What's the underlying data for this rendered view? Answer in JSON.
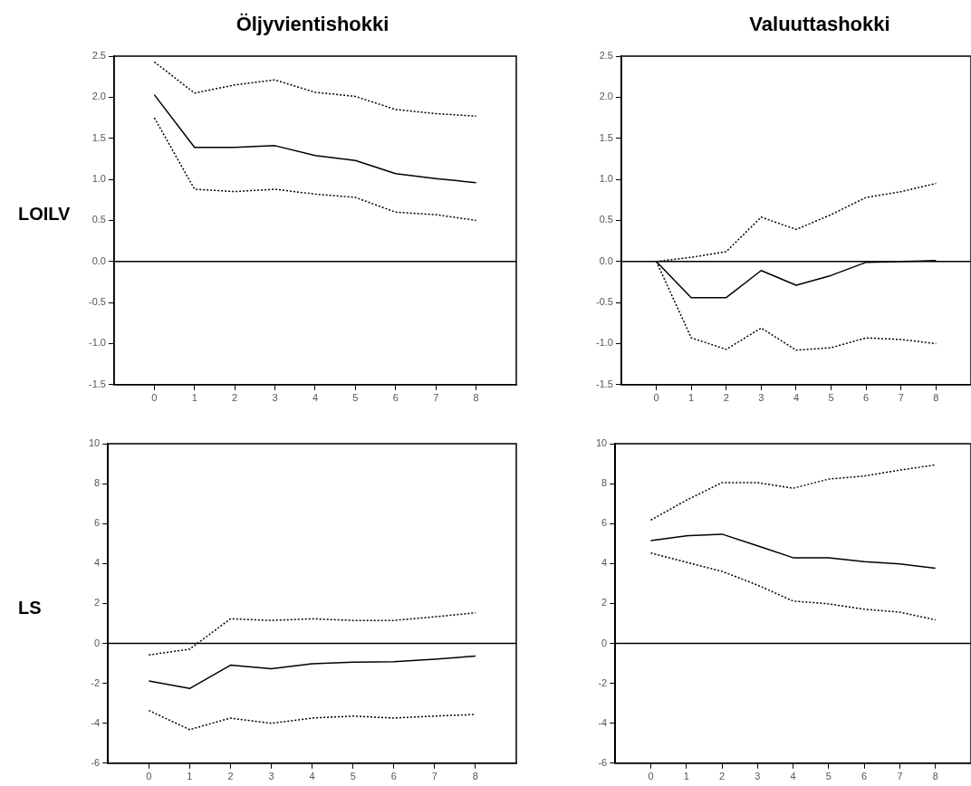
{
  "chart_data": [
    {
      "type": "line",
      "title": "Öljyvientishokki",
      "ylabel": "LOILV",
      "x": [
        0,
        1,
        2,
        3,
        4,
        5,
        6,
        7,
        8
      ],
      "xlim": [
        -1,
        9
      ],
      "xticks": [
        0,
        1,
        2,
        3,
        4,
        5,
        6,
        7,
        8
      ],
      "ylim": [
        -1.5,
        2.5
      ],
      "yticks": [
        -1.5,
        {
          "value": -1,
          "label": "-1.0"
        },
        -0.5,
        {
          "value": 0,
          "label": "0.0"
        },
        0.5,
        {
          "value": 1,
          "label": "1.0"
        },
        1.5,
        {
          "value": 2,
          "label": "2.0"
        },
        2.5
      ],
      "grid": false,
      "legend": false,
      "marker": "none",
      "ref_lines": [
        {
          "axis": "y",
          "value": 0,
          "color": "#000000",
          "line_style": "solid"
        }
      ],
      "series": [
        {
          "color": "#000000",
          "line_style": "solid",
          "values": [
            2.03,
            1.39,
            1.39,
            1.41,
            1.29,
            1.23,
            1.07,
            1.01,
            0.96
          ]
        },
        {
          "color": "#000000",
          "line_style": "dotted",
          "values": [
            2.43,
            2.05,
            2.15,
            2.21,
            2.06,
            2.01,
            1.85,
            1.8,
            1.77
          ]
        },
        {
          "color": "#000000",
          "line_style": "dotted",
          "values": [
            1.75,
            0.88,
            0.85,
            0.88,
            0.82,
            0.78,
            0.6,
            0.57,
            0.5
          ]
        }
      ]
    },
    {
      "type": "line",
      "title": "Valuuttashokki",
      "x": [
        0,
        1,
        2,
        3,
        4,
        5,
        6,
        7,
        8
      ],
      "xlim": [
        -1,
        9
      ],
      "xticks": [
        0,
        1,
        2,
        3,
        4,
        5,
        6,
        7,
        8
      ],
      "ylim": [
        -1.5,
        2.5
      ],
      "yticks": [
        -1.5,
        {
          "value": -1,
          "label": "-1.0"
        },
        -0.5,
        {
          "value": 0,
          "label": "0.0"
        },
        0.5,
        {
          "value": 1,
          "label": "1.0"
        },
        1.5,
        {
          "value": 2,
          "label": "2.0"
        },
        2.5
      ],
      "grid": false,
      "legend": false,
      "marker": "none",
      "ref_lines": [
        {
          "axis": "y",
          "value": 0,
          "color": "#000000",
          "line_style": "solid"
        }
      ],
      "series": [
        {
          "color": "#000000",
          "line_style": "solid",
          "values": [
            0,
            -0.44,
            -0.44,
            -0.11,
            -0.29,
            -0.17,
            -0.01,
            0.0,
            0.01
          ]
        },
        {
          "color": "#000000",
          "line_style": "dotted",
          "values": [
            0,
            0.05,
            0.12,
            0.54,
            0.39,
            0.57,
            0.78,
            0.85,
            0.95
          ]
        },
        {
          "color": "#000000",
          "line_style": "dotted",
          "values": [
            0,
            -0.93,
            -1.07,
            -0.81,
            -1.08,
            -1.05,
            -0.93,
            -0.95,
            -1.0
          ]
        }
      ]
    },
    {
      "type": "line",
      "ylabel": "LS",
      "x": [
        0,
        1,
        2,
        3,
        4,
        5,
        6,
        7,
        8
      ],
      "xlim": [
        -1,
        9
      ],
      "xticks": [
        0,
        1,
        2,
        3,
        4,
        5,
        6,
        7,
        8
      ],
      "ylim": [
        -6,
        10
      ],
      "yticks": [
        -6,
        -4,
        -2,
        0,
        2,
        4,
        6,
        8,
        10
      ],
      "grid": false,
      "legend": false,
      "marker": "none",
      "ref_lines": [
        {
          "axis": "y",
          "value": 0,
          "color": "#000000",
          "line_style": "solid"
        }
      ],
      "series": [
        {
          "color": "#000000",
          "line_style": "solid",
          "values": [
            -1.88,
            -2.26,
            -1.09,
            -1.27,
            -1.02,
            -0.94,
            -0.92,
            -0.79,
            -0.64
          ]
        },
        {
          "color": "#000000",
          "line_style": "dotted",
          "values": [
            -0.58,
            -0.29,
            1.23,
            1.15,
            1.23,
            1.15,
            1.15,
            1.33,
            1.53
          ]
        },
        {
          "color": "#000000",
          "line_style": "dotted",
          "values": [
            -3.36,
            -4.32,
            -3.74,
            -4.0,
            -3.74,
            -3.64,
            -3.74,
            -3.64,
            -3.56
          ]
        }
      ]
    },
    {
      "type": "line",
      "x": [
        0,
        1,
        2,
        3,
        4,
        5,
        6,
        7,
        8
      ],
      "xlim": [
        -1,
        9
      ],
      "xticks": [
        0,
        1,
        2,
        3,
        4,
        5,
        6,
        7,
        8
      ],
      "ylim": [
        -6,
        10
      ],
      "yticks": [
        -6,
        -4,
        -2,
        0,
        2,
        4,
        6,
        8,
        10
      ],
      "grid": false,
      "legend": false,
      "marker": "none",
      "ref_lines": [
        {
          "axis": "y",
          "value": 0,
          "color": "#000000",
          "line_style": "solid"
        }
      ],
      "series": [
        {
          "color": "#000000",
          "line_style": "solid",
          "values": [
            5.15,
            5.39,
            5.47,
            4.89,
            4.29,
            4.29,
            4.09,
            3.98,
            3.76
          ]
        },
        {
          "color": "#000000",
          "line_style": "dotted",
          "values": [
            6.18,
            7.17,
            8.05,
            8.05,
            7.77,
            8.23,
            8.38,
            8.68,
            8.94
          ]
        },
        {
          "color": "#000000",
          "line_style": "dotted",
          "values": [
            4.52,
            4.06,
            3.61,
            2.92,
            2.12,
            1.98,
            1.71,
            1.56,
            1.18
          ]
        }
      ]
    }
  ]
}
